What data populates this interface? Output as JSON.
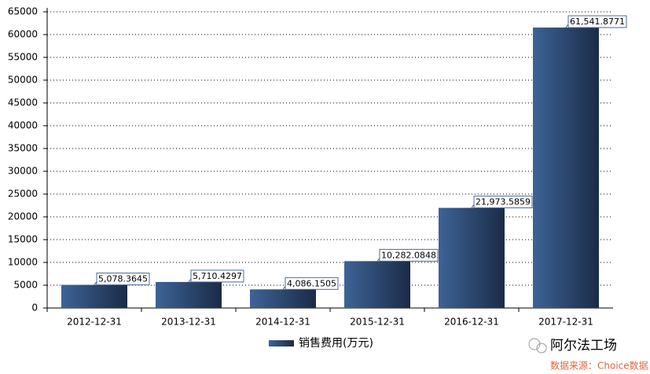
{
  "chart_data": {
    "type": "bar",
    "categories": [
      "2012-12-31",
      "2013-12-31",
      "2014-12-31",
      "2015-12-31",
      "2016-12-31",
      "2017-12-31"
    ],
    "series": [
      {
        "name": "销售费用(万元)",
        "color": "#3d6396",
        "values": [
          5078.3645,
          5710.4297,
          4086.1505,
          10282.0848,
          21973.5859,
          61541.8771
        ],
        "value_labels": [
          "5,078.3645",
          "5,710.4297",
          "4,086.1505",
          "10,282.0848",
          "21,973.5859",
          "61,541.8771"
        ]
      }
    ],
    "ylim": [
      0,
      65000
    ],
    "yticks": [
      0,
      5000,
      10000,
      15000,
      20000,
      25000,
      30000,
      35000,
      40000,
      45000,
      50000,
      55000,
      60000,
      65000
    ],
    "grid": true,
    "legend": "bottom"
  },
  "watermark": {
    "brand": "阿尔法工场",
    "source": "数据来源：Choice数据"
  }
}
